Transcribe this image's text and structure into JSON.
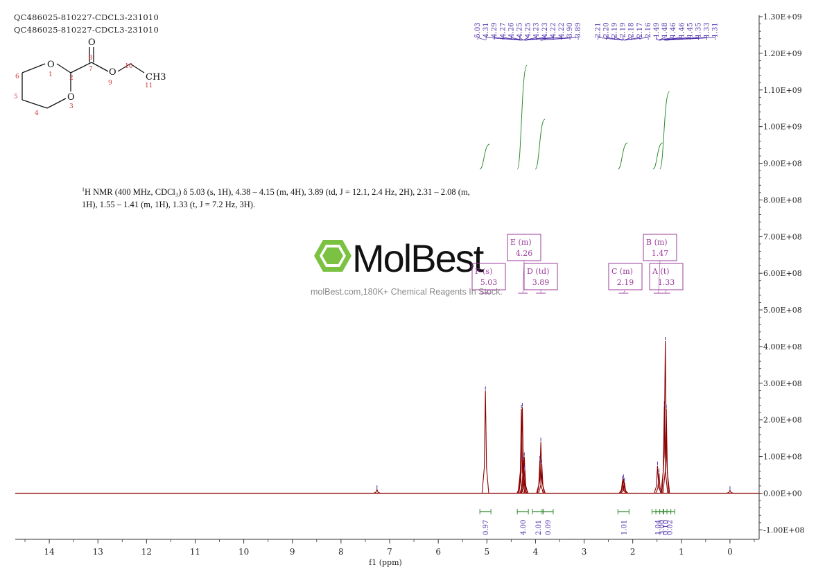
{
  "header": {
    "line1": "QC486025-810227-CDCL3-231010",
    "line2": "QC486025-810227-CDCL3-231010"
  },
  "nmr_description": {
    "sup": "1",
    "text": "H NMR (400 MHz, CDCl₃) δ 5.03 (s, 1H), 4.38 – 4.15 (m, 4H), 3.89 (td, J = 12.1, 2.4 Hz, 2H), 2.31 – 2.08 (m, 1H), 1.55 – 1.41 (m, 1H), 1.33 (t, J = 7.2 Hz, 3H)."
  },
  "watermark": {
    "logo_text": "MolBest",
    "tagline": "molBest.com,180K+ Chemical Reagents In Stock."
  },
  "structure": {
    "atoms": [
      "O",
      "O",
      "O",
      "O",
      "CH3"
    ],
    "numbers": [
      "1",
      "2",
      "3",
      "4",
      "5",
      "6",
      "7",
      "8",
      "9",
      "10",
      "11"
    ]
  },
  "peak_labels": [
    "5.03",
    "4.31",
    "4.29",
    "4.27",
    "4.26",
    "4.25",
    "4.25",
    "4.23",
    "4.23",
    "4.22",
    "4.22",
    "3.90",
    "3.89",
    "2.21",
    "2.20",
    "2.19",
    "2.19",
    "2.18",
    "2.17",
    "2.16",
    "1.49",
    "1.48",
    "1.46",
    "1.46",
    "1.45",
    "1.35",
    "1.33",
    "1.31"
  ],
  "multiplets": [
    {
      "id": "F",
      "mult": "s",
      "shift": "5.03"
    },
    {
      "id": "E",
      "mult": "m",
      "shift": "4.26"
    },
    {
      "id": "D",
      "mult": "td",
      "shift": "3.89"
    },
    {
      "id": "C",
      "mult": "m",
      "shift": "2.19"
    },
    {
      "id": "B",
      "mult": "m",
      "shift": "1.47"
    },
    {
      "id": "A",
      "mult": "t",
      "shift": "1.33"
    }
  ],
  "integrals": [
    {
      "ppm": 5.03,
      "value": "0.97"
    },
    {
      "ppm": 4.26,
      "value": "4.00"
    },
    {
      "ppm": 3.95,
      "value": "2.01"
    },
    {
      "ppm": 3.75,
      "value": "0.09"
    },
    {
      "ppm": 2.19,
      "value": "1.01"
    },
    {
      "ppm": 1.49,
      "value": "1.04"
    },
    {
      "ppm": 1.41,
      "value": "3.00"
    },
    {
      "ppm": 1.33,
      "value": "0.10"
    },
    {
      "ppm": 1.25,
      "value": "0.02"
    }
  ],
  "colors": {
    "spectrum": "#8b0000",
    "integral": "#2e8b2e",
    "label": "#4b2ca8",
    "multiplet": "#9b3c9b",
    "logo": "#7cc242"
  },
  "chart_data": {
    "type": "line",
    "title": "",
    "xlabel": "f1 (ppm)",
    "ylabel": "",
    "xlim": [
      14.7,
      -0.6
    ],
    "ylim": [
      -130000000.0,
      1300000000.0
    ],
    "x_ticks": [
      "14",
      "13",
      "12",
      "11",
      "10",
      "9",
      "8",
      "7",
      "6",
      "5",
      "4",
      "3",
      "2",
      "1",
      "0"
    ],
    "y_ticks": [
      "1.30E+09",
      "1.20E+09",
      "1.10E+09",
      "1.00E+09",
      "9.00E+08",
      "8.00E+08",
      "7.00E+08",
      "6.00E+08",
      "5.00E+08",
      "4.00E+08",
      "3.00E+08",
      "2.00E+08",
      "1.00E+08",
      "0.00E+00",
      "-1.00E+08"
    ],
    "y_tick_values": [
      1300000000.0,
      1200000000.0,
      1100000000.0,
      1000000000.0,
      900000000.0,
      800000000.0,
      700000000.0,
      600000000.0,
      500000000.0,
      400000000.0,
      300000000.0,
      200000000.0,
      100000000.0,
      0,
      -100000000.0
    ],
    "series": [
      {
        "peaks": [
          {
            "ppm": 7.26,
            "height": 10000000.0
          },
          {
            "ppm": 5.03,
            "height": 280000000.0
          },
          {
            "ppm": 4.31,
            "height": 60000000.0
          },
          {
            "ppm": 4.29,
            "height": 230000000.0
          },
          {
            "ppm": 4.27,
            "height": 235000000.0
          },
          {
            "ppm": 4.25,
            "height": 90000000.0
          },
          {
            "ppm": 4.23,
            "height": 100000000.0
          },
          {
            "ppm": 4.22,
            "height": 65000000.0
          },
          {
            "ppm": 3.91,
            "height": 90000000.0
          },
          {
            "ppm": 3.89,
            "height": 140000000.0
          },
          {
            "ppm": 3.87,
            "height": 80000000.0
          },
          {
            "ppm": 2.21,
            "height": 35000000.0
          },
          {
            "ppm": 2.19,
            "height": 40000000.0
          },
          {
            "ppm": 2.17,
            "height": 30000000.0
          },
          {
            "ppm": 1.49,
            "height": 75000000.0
          },
          {
            "ppm": 1.46,
            "height": 55000000.0
          },
          {
            "ppm": 1.35,
            "height": 240000000.0
          },
          {
            "ppm": 1.33,
            "height": 415000000.0
          },
          {
            "ppm": 1.31,
            "height": 230000000.0
          },
          {
            "ppm": 0.0,
            "height": 8000000.0
          }
        ]
      }
    ]
  }
}
